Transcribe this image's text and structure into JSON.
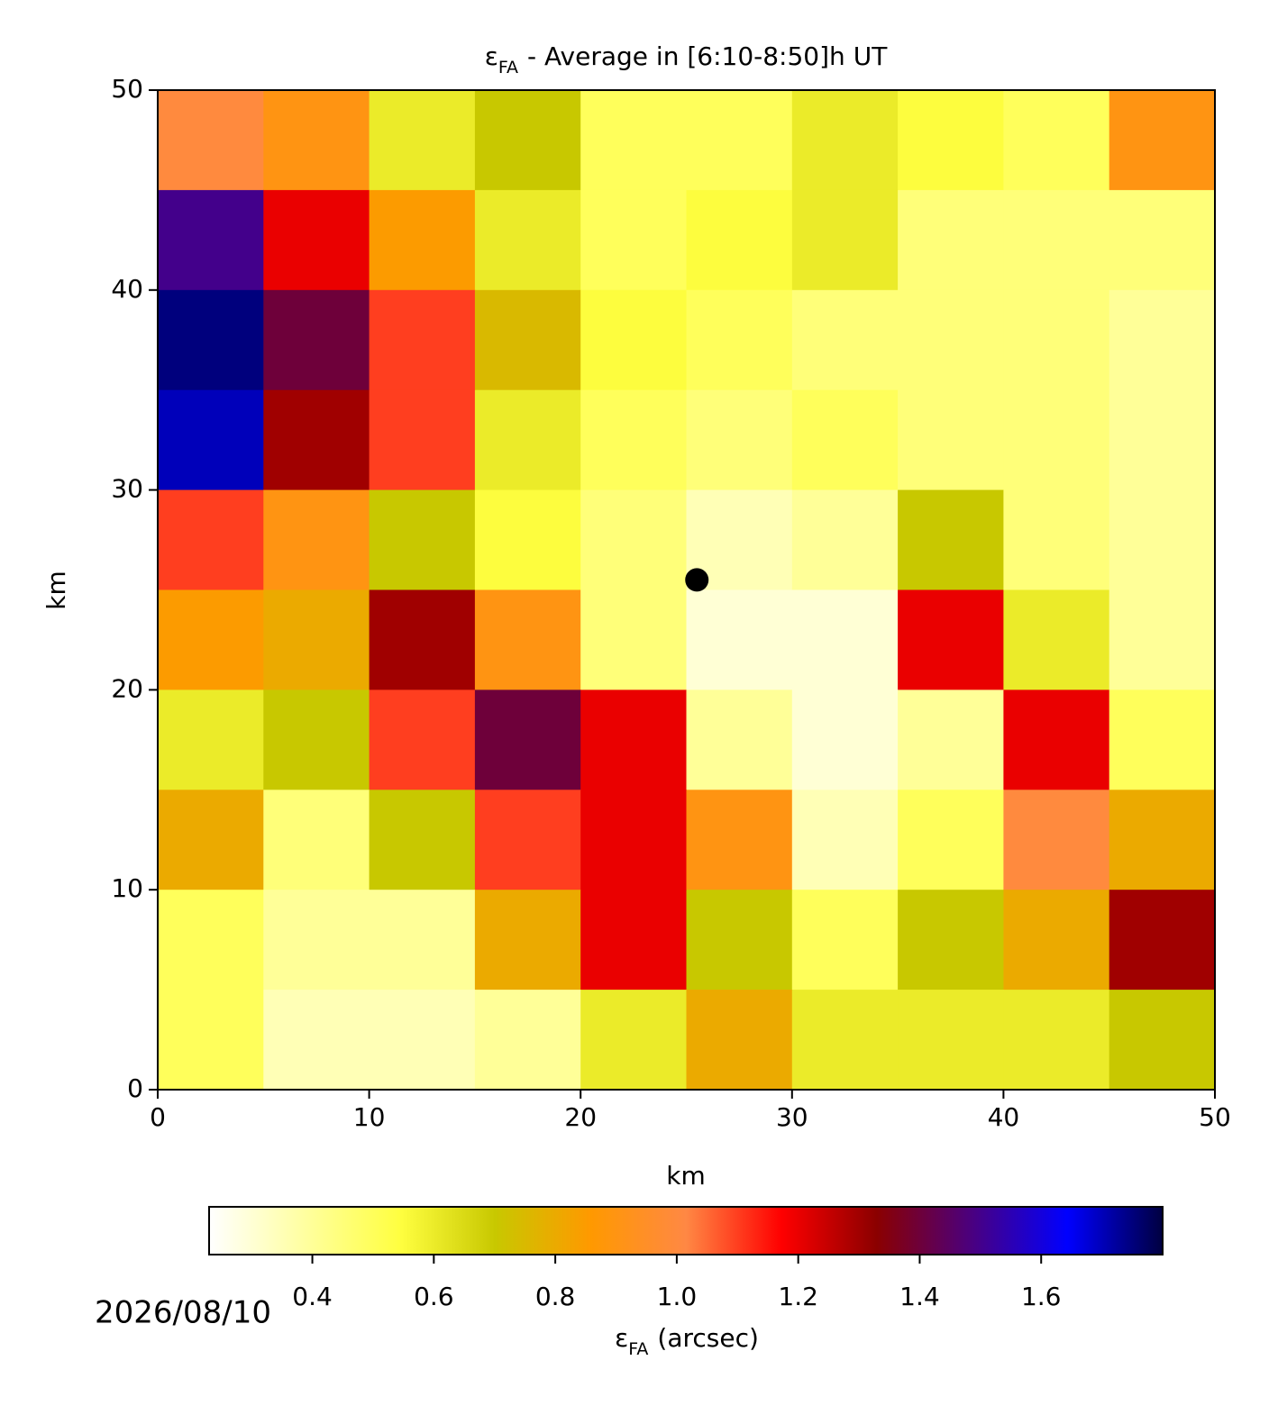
{
  "chart_data": {
    "type": "heatmap",
    "title": {
      "symbol": "ε",
      "sub": "FA",
      "rest": "- Average in [6:10-8:50]h UT"
    },
    "xlabel": "km",
    "ylabel": "km",
    "xlim": [
      0,
      50
    ],
    "ylim": [
      0,
      50
    ],
    "xticks": [
      0,
      10,
      20,
      30,
      40,
      50
    ],
    "yticks": [
      0,
      10,
      20,
      30,
      40,
      50
    ],
    "x": [
      2.5,
      7.5,
      12.5,
      17.5,
      22.5,
      27.5,
      32.5,
      37.5,
      42.5,
      47.5
    ],
    "y": [
      47.5,
      42.5,
      37.5,
      32.5,
      27.5,
      22.5,
      17.5,
      12.5,
      7.5,
      2.5
    ],
    "z": [
      [
        1.0,
        0.9,
        0.6,
        0.7,
        0.5,
        0.5,
        0.6,
        0.55,
        0.5,
        0.9
      ],
      [
        1.5,
        1.2,
        0.85,
        0.6,
        0.5,
        0.55,
        0.6,
        0.45,
        0.45,
        0.45
      ],
      [
        1.75,
        1.4,
        1.1,
        0.75,
        0.55,
        0.5,
        0.45,
        0.45,
        0.45,
        0.4
      ],
      [
        1.7,
        1.3,
        1.1,
        0.6,
        0.5,
        0.45,
        0.5,
        0.45,
        0.45,
        0.4
      ],
      [
        1.1,
        0.9,
        0.7,
        0.55,
        0.45,
        0.35,
        0.4,
        0.7,
        0.45,
        0.4
      ],
      [
        0.85,
        0.8,
        1.3,
        0.9,
        0.45,
        0.3,
        0.3,
        1.2,
        0.6,
        0.4
      ],
      [
        0.6,
        0.7,
        1.1,
        1.4,
        1.2,
        0.4,
        0.3,
        0.4,
        1.2,
        0.5
      ],
      [
        0.8,
        0.45,
        0.7,
        1.1,
        1.2,
        0.9,
        0.35,
        0.5,
        1.0,
        0.8
      ],
      [
        0.5,
        0.4,
        0.4,
        0.8,
        1.2,
        0.7,
        0.5,
        0.7,
        0.8,
        1.3
      ],
      [
        0.5,
        0.35,
        0.35,
        0.4,
        0.6,
        0.8,
        0.6,
        0.6,
        0.6,
        0.7
      ]
    ],
    "marker": {
      "x": 25.5,
      "y": 25.5,
      "color": "#000000"
    },
    "colorbar": {
      "label": {
        "symbol": "ε",
        "sub": "FA",
        "rest": "(arcsec)"
      },
      "lim": [
        0.23,
        1.8
      ],
      "ticks": [
        0.4,
        0.6,
        0.8,
        1.0,
        1.2,
        1.4,
        1.6
      ],
      "colors": [
        "#ffffff",
        "#ffffa0",
        "#ffff40",
        "#c8c800",
        "#ff9900",
        "#ff8844",
        "#ff0000",
        "#8b0000",
        "#4a0080",
        "#0000ff",
        "#000040"
      ]
    },
    "date": "2026/08/10"
  }
}
